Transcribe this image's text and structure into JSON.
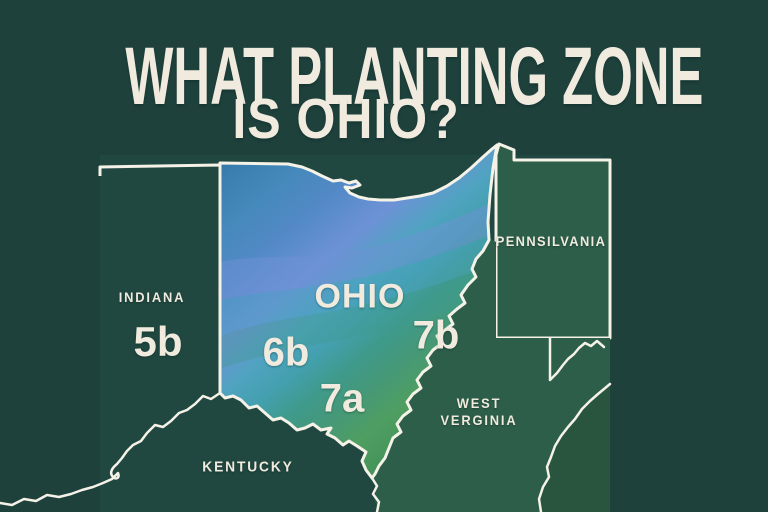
{
  "title": {
    "line1": "WHAT PLANTING ZONE",
    "line2": "IS OHIO?"
  },
  "map": {
    "ohio_label": "OHIO",
    "states": {
      "indiana": {
        "name": "INDIANA",
        "zone": "5b"
      },
      "pennsylvania": {
        "name": "PENNSILVANIA"
      },
      "west_virginia": {
        "name_line1": "WEST",
        "name_line2": "VERGINIA"
      },
      "kentucky": {
        "name": "KENTUCKY"
      }
    },
    "ohio_zones": {
      "west": "6b",
      "south": "7a",
      "east": "7b"
    }
  },
  "colors": {
    "page_background": "#1e413c",
    "map_background": "#214741",
    "neighbor_state_green": "#2d5e4a",
    "virginia_corner_green": "#29553f",
    "border_white": "#f5f2e8",
    "text_cream": "#f0ebde",
    "ohio_zone_gradient": [
      "#2e6d9c",
      "#3a7fb0",
      "#4589bb",
      "#5289c6",
      "#6d92d6",
      "#4fa3c0",
      "#43a0ae",
      "#3f9a8c",
      "#459878",
      "#4f9e62",
      "#419055",
      "#2f7f47"
    ]
  }
}
